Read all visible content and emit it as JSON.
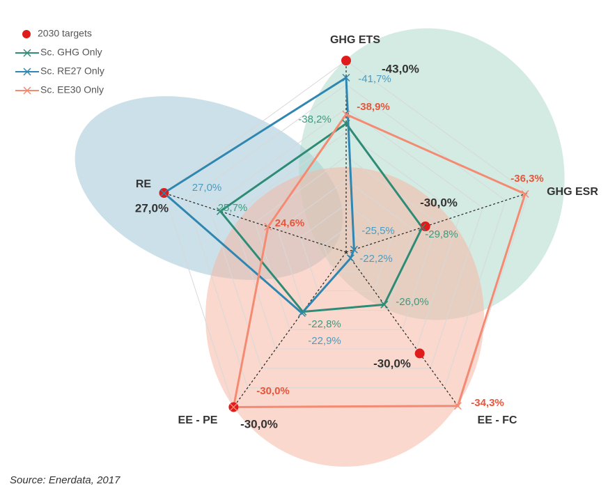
{
  "chart_data": {
    "type": "radar",
    "categories": [
      "GHG ETS",
      "GHG ESR",
      "EE - FC",
      "EE - PE",
      "RE"
    ],
    "ranges": [
      [
        -28.4,
        -43
      ],
      [
        -25,
        -36.5
      ],
      [
        -21.7,
        -34.4
      ],
      [
        -18.3,
        -30
      ],
      [
        22.8,
        27
      ]
    ],
    "series": [
      {
        "name": "2030 targets",
        "color": "#e01b1b",
        "marker": "dot",
        "values": [
          -43,
          -30,
          -30,
          -30,
          27
        ],
        "value_labels": [
          "-43,0%",
          "-30,0%",
          "-30,0%",
          "-30,0%",
          "27,0%"
        ]
      },
      {
        "name": "Sc. GHG Only",
        "color": "#2e8b75",
        "marker": "line",
        "values": [
          -38.2,
          -29.8,
          -26.0,
          -22.8,
          25.7
        ],
        "value_labels": [
          "-38,2%",
          "-29,8%",
          "-26,0%",
          "-22,8%",
          "25,7%"
        ]
      },
      {
        "name": "Sc. RE27 Only",
        "color": "#2f86b0",
        "marker": "line",
        "values": [
          -41.7,
          -25.5,
          -22.2,
          -22.9,
          27.0
        ],
        "value_labels": [
          "-41,7%",
          "-25,5%",
          "-22,2%",
          "-22,9%",
          "27,0%"
        ]
      },
      {
        "name": "Sc. EE30 Only",
        "color": "#f58a73",
        "marker": "line",
        "values": [
          -38.9,
          -36.3,
          -34.3,
          -30.0,
          24.6
        ],
        "value_labels": [
          "-38,9%",
          "-36,3%",
          "-34,3%",
          "-30,0%",
          "24,6%"
        ]
      }
    ],
    "source": "Source: Enerdata, 2017"
  }
}
